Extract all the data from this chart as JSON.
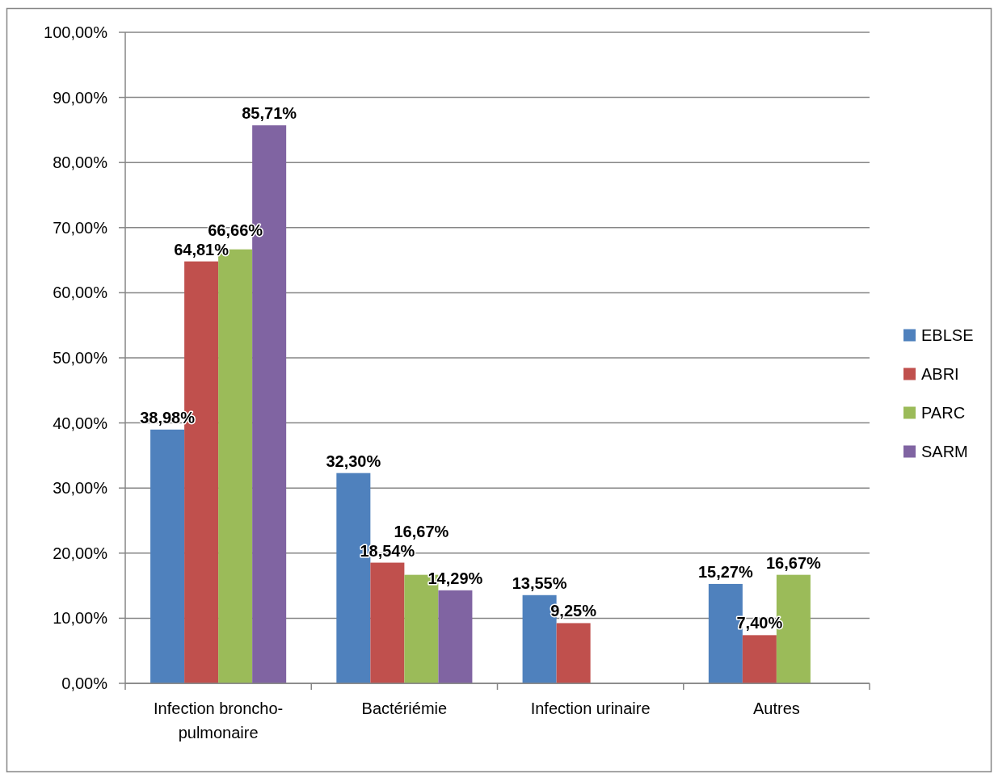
{
  "chart_data": {
    "type": "bar",
    "categories": [
      "Infection broncho-pulmonaire",
      "Bactériémie",
      "Infection urinaire",
      "Autres"
    ],
    "series": [
      {
        "name": "EBLSE",
        "color": "#4f81bd",
        "values": [
          38.98,
          32.3,
          13.55,
          15.27
        ],
        "value_labels": [
          "38,98%",
          "32,30%",
          "13,55%",
          "15,27%"
        ]
      },
      {
        "name": "ABRI",
        "color": "#c0504d",
        "values": [
          64.81,
          18.54,
          9.25,
          7.4
        ],
        "value_labels": [
          "64,81%",
          "18,54%",
          "9,25%",
          "7,40%"
        ]
      },
      {
        "name": "PARC",
        "color": "#9bbb59",
        "values": [
          66.66,
          16.67,
          null,
          16.67
        ],
        "value_labels": [
          "66,66%",
          "16,67%",
          null,
          "16,67%"
        ]
      },
      {
        "name": "SARM",
        "color": "#8064a2",
        "values": [
          85.71,
          14.29,
          null,
          null
        ],
        "value_labels": [
          "85,71%",
          "14,29%",
          null,
          null
        ]
      }
    ],
    "ylim": [
      0,
      100
    ],
    "yticks": [
      {
        "value": 0,
        "label": "0,00%"
      },
      {
        "value": 10,
        "label": "10,00%"
      },
      {
        "value": 20,
        "label": "20,00%"
      },
      {
        "value": 30,
        "label": "30,00%"
      },
      {
        "value": 40,
        "label": "40,00%"
      },
      {
        "value": 50,
        "label": "50,00%"
      },
      {
        "value": 60,
        "label": "60,00%"
      },
      {
        "value": 70,
        "label": "70,00%"
      },
      {
        "value": 80,
        "label": "80,00%"
      },
      {
        "value": 90,
        "label": "90,00%"
      },
      {
        "value": 100,
        "label": "100,00%"
      }
    ],
    "grid": "y",
    "legend": "right"
  }
}
